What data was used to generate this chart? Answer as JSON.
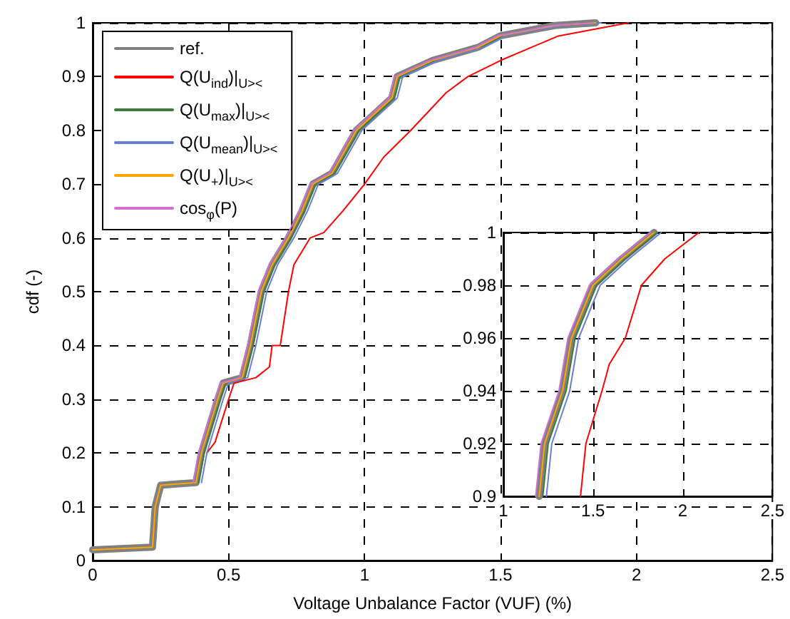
{
  "chart_data": [
    {
      "type": "line",
      "xlabel": "Voltage Unbalance Factor (VUF) (%)",
      "ylabel": "cdf (-)",
      "xlim": [
        0,
        2.5
      ],
      "xticks": [
        0,
        0.5,
        1,
        1.5,
        2,
        2.5
      ],
      "ylim": [
        0,
        1
      ],
      "yticks": [
        0,
        0.1,
        0.2,
        0.3,
        0.4,
        0.5,
        0.6,
        0.7,
        0.8,
        0.9,
        1
      ],
      "grid": true,
      "legend": "top left",
      "line_style": "solid",
      "marker": "none",
      "series": [
        {
          "name": "ref.",
          "color": "#808080",
          "x": [
            0,
            0.22,
            0.23,
            0.25,
            0.38,
            0.4,
            0.43,
            0.46,
            0.48,
            0.55,
            0.58,
            0.6,
            0.62,
            0.66,
            0.72,
            0.77,
            0.81,
            0.88,
            0.97,
            1.1,
            1.12,
            1.25,
            1.42,
            1.5,
            1.7,
            1.85
          ],
          "values": [
            0.02,
            0.025,
            0.1,
            0.14,
            0.145,
            0.2,
            0.25,
            0.3,
            0.33,
            0.34,
            0.4,
            0.45,
            0.5,
            0.55,
            0.6,
            0.65,
            0.7,
            0.72,
            0.8,
            0.86,
            0.9,
            0.93,
            0.955,
            0.976,
            0.995,
            1
          ]
        },
        {
          "name": "Q(U$_{ind}$)|$_{U><}$",
          "color": "#ff0000",
          "x": [
            0.42,
            0.45,
            0.5,
            0.52,
            0.6,
            0.65,
            0.66,
            0.69,
            0.72,
            0.74,
            0.8,
            0.85,
            0.92,
            1.0,
            1.07,
            1.17,
            1.3,
            1.38,
            1.5,
            1.71,
            1.97
          ],
          "values": [
            0.2,
            0.22,
            0.3,
            0.33,
            0.34,
            0.36,
            0.4,
            0.4,
            0.5,
            0.55,
            0.6,
            0.61,
            0.65,
            0.7,
            0.75,
            0.8,
            0.87,
            0.9,
            0.93,
            0.975,
            1
          ]
        },
        {
          "name": "Q(U$_{max}$)|$_{U><}$",
          "color": "#3a7d3a",
          "x": [
            0.39,
            0.41,
            0.44,
            0.47,
            0.49,
            0.56,
            0.59,
            0.61,
            0.63,
            0.67,
            0.73,
            0.78,
            0.82,
            0.89,
            0.98,
            1.11,
            1.13,
            1.26,
            1.43,
            1.51,
            1.71,
            1.86
          ],
          "values": [
            0.145,
            0.2,
            0.25,
            0.3,
            0.33,
            0.34,
            0.4,
            0.45,
            0.5,
            0.55,
            0.6,
            0.65,
            0.7,
            0.72,
            0.8,
            0.86,
            0.9,
            0.93,
            0.955,
            0.976,
            0.995,
            1
          ]
        },
        {
          "name": "Q(U$_{mean}$)|$_{U><}$",
          "color": "#6a7fd0",
          "x": [
            0.4,
            0.42,
            0.45,
            0.48,
            0.5,
            0.57,
            0.6,
            0.62,
            0.64,
            0.68,
            0.74,
            0.79,
            0.83,
            0.9,
            0.99,
            1.12,
            1.14,
            1.27,
            1.44,
            1.52,
            1.72,
            1.87
          ],
          "values": [
            0.145,
            0.2,
            0.25,
            0.3,
            0.33,
            0.34,
            0.4,
            0.45,
            0.5,
            0.55,
            0.6,
            0.65,
            0.7,
            0.72,
            0.8,
            0.86,
            0.9,
            0.93,
            0.955,
            0.976,
            0.995,
            1
          ]
        },
        {
          "name": "Q(U$_{+}$)|$_{U><}$",
          "color": "#ffa500",
          "x": [
            0,
            0.22,
            0.23,
            0.25,
            0.38,
            0.4,
            0.43,
            0.46,
            0.48,
            0.55,
            0.58,
            0.6,
            0.62,
            0.66,
            0.72,
            0.77,
            0.81,
            0.88,
            0.97,
            1.1,
            1.12,
            1.25,
            1.42,
            1.5,
            1.7,
            1.85
          ],
          "values": [
            0.02,
            0.025,
            0.1,
            0.14,
            0.145,
            0.2,
            0.25,
            0.3,
            0.33,
            0.34,
            0.4,
            0.45,
            0.5,
            0.55,
            0.6,
            0.65,
            0.7,
            0.72,
            0.8,
            0.86,
            0.9,
            0.93,
            0.955,
            0.976,
            0.995,
            1
          ]
        },
        {
          "name": "cos$_{φ}$(P)",
          "color": "#d070d0",
          "x": [
            0.37,
            0.39,
            0.42,
            0.45,
            0.47,
            0.54,
            0.57,
            0.59,
            0.61,
            0.65,
            0.71,
            0.76,
            0.8,
            0.87,
            0.96,
            1.09,
            1.11,
            1.24,
            1.41,
            1.49,
            1.69,
            1.84
          ],
          "values": [
            0.145,
            0.2,
            0.25,
            0.3,
            0.33,
            0.34,
            0.4,
            0.45,
            0.5,
            0.55,
            0.6,
            0.65,
            0.7,
            0.72,
            0.8,
            0.86,
            0.9,
            0.93,
            0.955,
            0.976,
            0.995,
            1
          ]
        }
      ]
    },
    {
      "type": "line",
      "xlim": [
        1,
        2.5
      ],
      "xticks": [
        1,
        1.5,
        2,
        2.5
      ],
      "ylim": [
        0.9,
        1
      ],
      "yticks": [
        0.9,
        0.92,
        0.94,
        0.96,
        0.98,
        1
      ],
      "grid": true,
      "line_style": "solid",
      "marker": "none",
      "series": [
        {
          "color": "#808080",
          "x": [
            1.2,
            1.23,
            1.33,
            1.38,
            1.5,
            1.66,
            1.84
          ],
          "values": [
            0.9,
            0.92,
            0.94,
            0.96,
            0.98,
            0.99,
            1
          ]
        },
        {
          "color": "#ff0000",
          "x": [
            1.43,
            1.46,
            1.55,
            1.59,
            1.68,
            1.77,
            1.9,
            2.09
          ],
          "values": [
            0.9,
            0.92,
            0.94,
            0.95,
            0.96,
            0.98,
            0.99,
            1
          ]
        },
        {
          "color": "#3a7d3a",
          "x": [
            1.22,
            1.25,
            1.35,
            1.4,
            1.52,
            1.68,
            1.86
          ],
          "values": [
            0.9,
            0.92,
            0.94,
            0.96,
            0.98,
            0.99,
            1
          ]
        },
        {
          "color": "#6a7fd0",
          "x": [
            1.24,
            1.27,
            1.37,
            1.42,
            1.54,
            1.7,
            1.88
          ],
          "values": [
            0.9,
            0.92,
            0.94,
            0.96,
            0.98,
            0.99,
            1
          ]
        },
        {
          "color": "#ffa500",
          "x": [
            1.2,
            1.23,
            1.33,
            1.38,
            1.5,
            1.66,
            1.84
          ],
          "values": [
            0.9,
            0.92,
            0.94,
            0.96,
            0.98,
            0.99,
            1
          ]
        },
        {
          "color": "#d070d0",
          "x": [
            1.18,
            1.21,
            1.31,
            1.36,
            1.48,
            1.64,
            1.82
          ],
          "values": [
            0.9,
            0.92,
            0.94,
            0.96,
            0.98,
            0.99,
            1
          ]
        }
      ]
    }
  ]
}
